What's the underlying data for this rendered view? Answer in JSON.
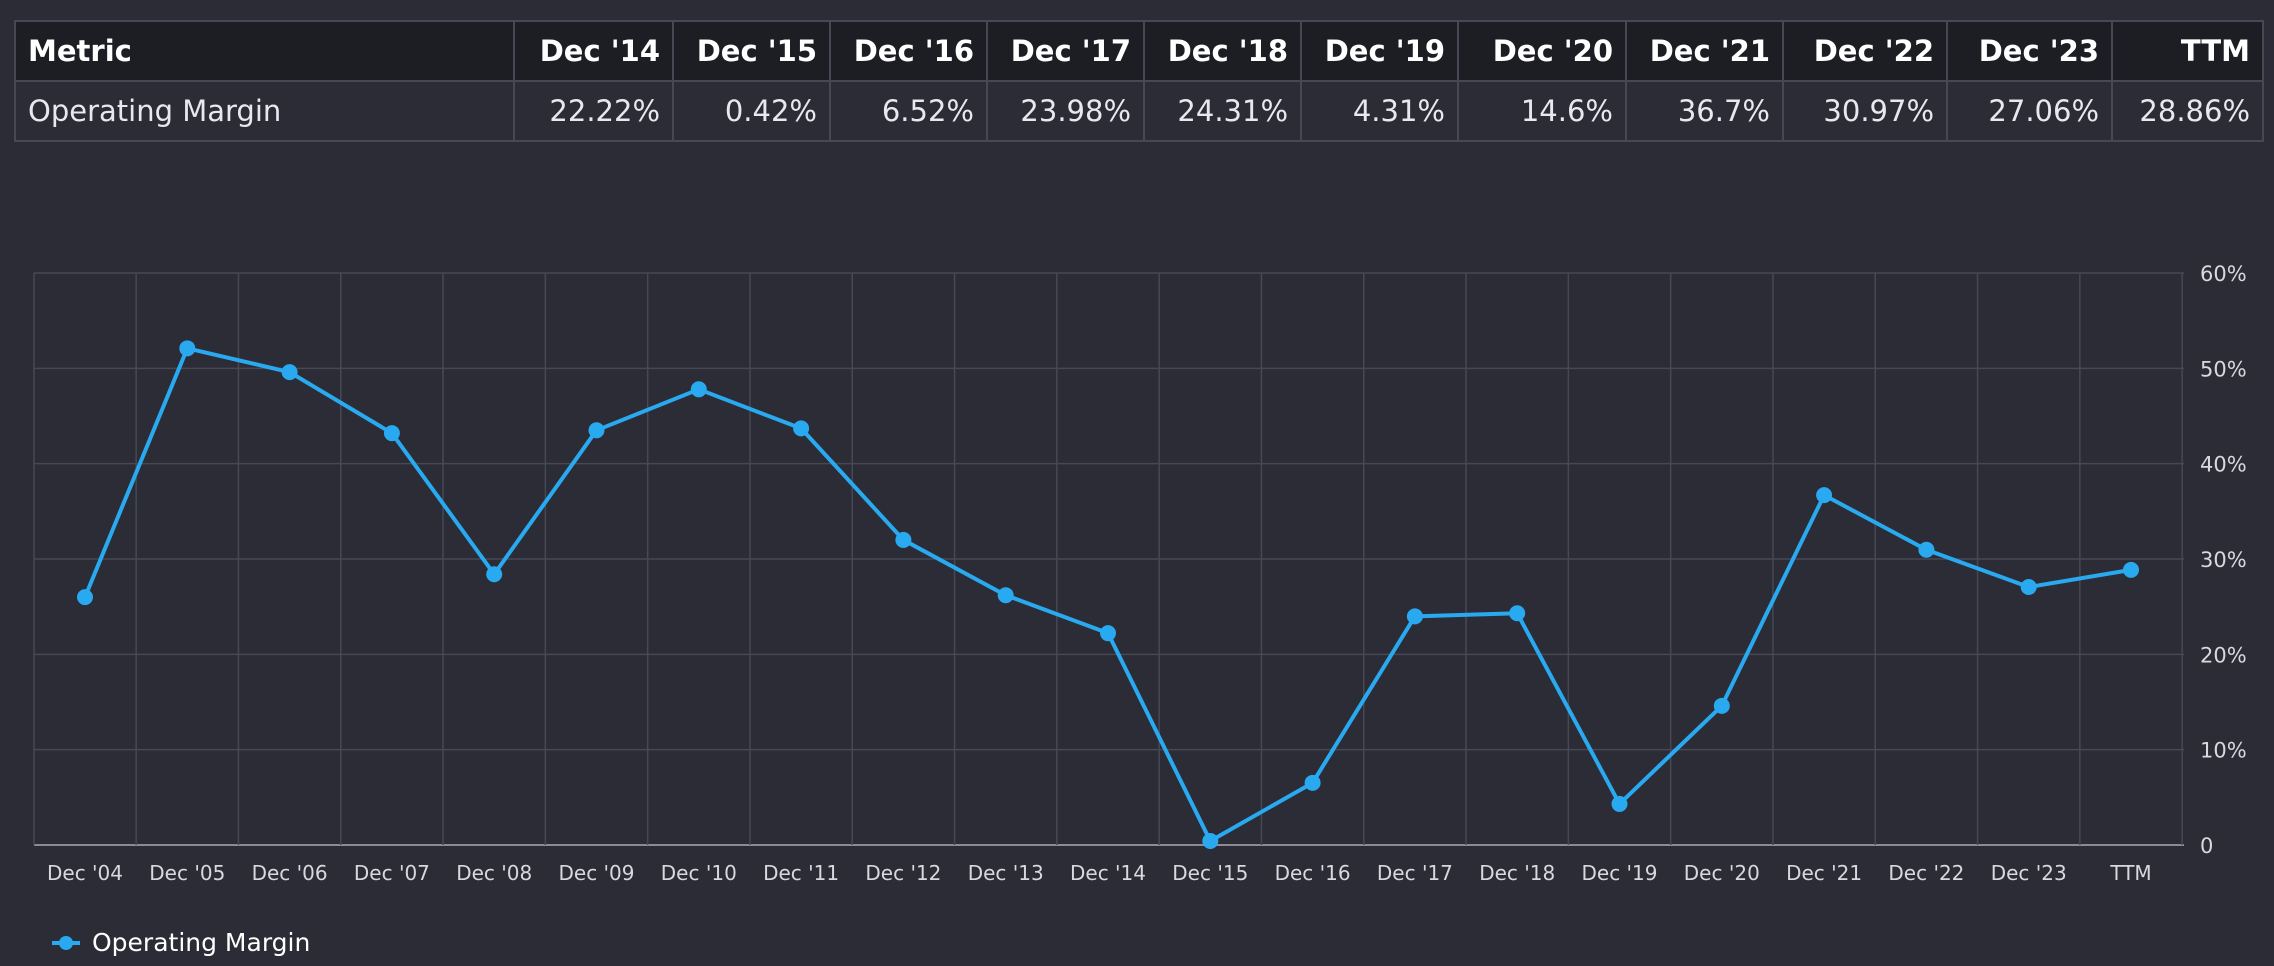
{
  "table": {
    "header": [
      "Metric",
      "Dec '14",
      "Dec '15",
      "Dec '16",
      "Dec '17",
      "Dec '18",
      "Dec '19",
      "Dec '20",
      "Dec '21",
      "Dec '22",
      "Dec '23",
      "TTM"
    ],
    "rows": [
      [
        "Operating Margin",
        "22.22%",
        "0.42%",
        "6.52%",
        "23.98%",
        "24.31%",
        "4.31%",
        "14.6%",
        "36.7%",
        "30.97%",
        "27.06%",
        "28.86%"
      ]
    ]
  },
  "chart_data": {
    "type": "line",
    "categories": [
      "Dec '04",
      "Dec '05",
      "Dec '06",
      "Dec '07",
      "Dec '08",
      "Dec '09",
      "Dec '10",
      "Dec '11",
      "Dec '12",
      "Dec '13",
      "Dec '14",
      "Dec '15",
      "Dec '16",
      "Dec '17",
      "Dec '18",
      "Dec '19",
      "Dec '20",
      "Dec '21",
      "Dec '22",
      "Dec '23",
      "TTM"
    ],
    "series": [
      {
        "name": "Operating Margin",
        "values": [
          26.0,
          52.1,
          49.6,
          43.2,
          28.4,
          43.5,
          47.8,
          43.7,
          32.0,
          26.2,
          22.22,
          0.42,
          6.52,
          23.98,
          24.31,
          4.31,
          14.6,
          36.7,
          30.97,
          27.06,
          28.86
        ],
        "color": "#29a9f0"
      }
    ],
    "yticks": [
      "0",
      "10%",
      "20%",
      "30%",
      "40%",
      "50%",
      "60%"
    ],
    "ylim": [
      0,
      60
    ],
    "grid": true,
    "legend_position": "bottom-left"
  },
  "colors": {
    "background": "#2b2c35",
    "grid": "#474856",
    "line": "#29a9f0",
    "header_bg": "#1d1e24"
  }
}
